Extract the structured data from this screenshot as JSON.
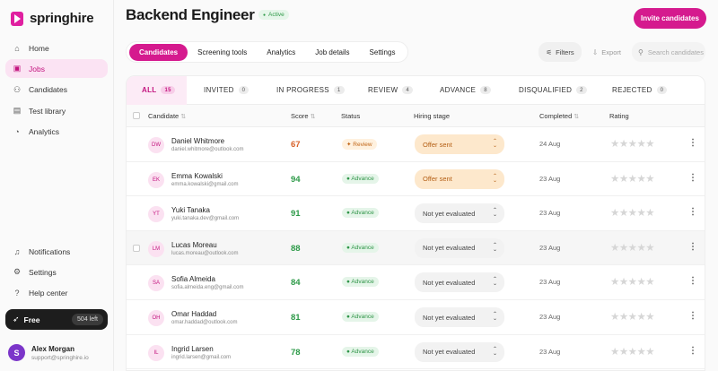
{
  "brand": {
    "name": "springhire",
    "color": "#d51a8e"
  },
  "sidebar": {
    "top_items": [
      {
        "label": "Home",
        "icon": "home-icon",
        "active": false
      },
      {
        "label": "Jobs",
        "icon": "briefcase-icon",
        "active": true
      },
      {
        "label": "Candidates",
        "icon": "users-icon",
        "active": false
      },
      {
        "label": "Test library",
        "icon": "book-icon",
        "active": false
      },
      {
        "label": "Analytics",
        "icon": "chart-icon",
        "active": false
      }
    ],
    "bottom_items": [
      {
        "label": "Notifications",
        "icon": "bell-icon"
      },
      {
        "label": "Settings",
        "icon": "gear-icon"
      },
      {
        "label": "Help center",
        "icon": "help-icon"
      }
    ],
    "plan": {
      "name": "Free",
      "remaining": "504 left"
    },
    "user": {
      "initial": "S",
      "name": "Alex Morgan",
      "email": "support@springhire.io"
    }
  },
  "header": {
    "title": "Backend Engineer",
    "status": "Active",
    "invite_label": "Invite candidates"
  },
  "tabs": [
    "Candidates",
    "Screening tools",
    "Analytics",
    "Job details",
    "Settings"
  ],
  "active_tab": "Candidates",
  "toolbar": {
    "filters_label": "Filters",
    "export_label": "Export",
    "search_placeholder": "Search candidates"
  },
  "stage_tabs": [
    {
      "label": "ALL",
      "count": "15",
      "active": true
    },
    {
      "label": "INVITED",
      "count": "0"
    },
    {
      "label": "IN PROGRESS",
      "count": "1"
    },
    {
      "label": "REVIEW",
      "count": "4"
    },
    {
      "label": "ADVANCE",
      "count": "8"
    },
    {
      "label": "DISQUALIFIED",
      "count": "2"
    },
    {
      "label": "REJECTED",
      "count": "0"
    }
  ],
  "table": {
    "columns": {
      "candidate": "Candidate",
      "score": "Score",
      "status": "Status",
      "stage": "Hiring stage",
      "completed": "Completed",
      "rating": "Rating"
    },
    "rows": [
      {
        "initials": "DW",
        "name": "Daniel Whitmore",
        "email": "daniel.whitmore@outlook.com",
        "score": "67",
        "score_color": "#d8622a",
        "status": "Review",
        "status_type": "review",
        "stage": "Offer sent",
        "stage_type": "offer",
        "completed": "24 Aug",
        "rating": 0
      },
      {
        "initials": "EK",
        "name": "Emma Kowalski",
        "email": "emma.kowalski@gmail.com",
        "score": "94",
        "score_color": "#2d9a48",
        "status": "Advance",
        "status_type": "advance",
        "stage": "Offer sent",
        "stage_type": "offer",
        "completed": "23 Aug",
        "rating": 0
      },
      {
        "initials": "YT",
        "name": "Yuki Tanaka",
        "email": "yuki.tanaka.dev@gmail.com",
        "score": "91",
        "score_color": "#2d9a48",
        "status": "Advance",
        "status_type": "advance",
        "stage": "Not yet evaluated",
        "stage_type": "none",
        "completed": "23 Aug",
        "rating": 0
      },
      {
        "initials": "LM",
        "name": "Lucas Moreau",
        "email": "lucas.moreau@outlook.com",
        "score": "88",
        "score_color": "#2d9a48",
        "status": "Advance",
        "status_type": "advance",
        "stage": "Not yet evaluated",
        "stage_type": "none",
        "completed": "23 Aug",
        "rating": 0
      },
      {
        "initials": "SA",
        "name": "Sofia Almeida",
        "email": "sofia.almeida.eng@gmail.com",
        "score": "84",
        "score_color": "#2d9a48",
        "status": "Advance",
        "status_type": "advance",
        "stage": "Not yet evaluated",
        "stage_type": "none",
        "completed": "23 Aug",
        "rating": 0
      },
      {
        "initials": "OH",
        "name": "Omar Haddad",
        "email": "omar.haddad@outlook.com",
        "score": "81",
        "score_color": "#2d9a48",
        "status": "Advance",
        "status_type": "advance",
        "stage": "Not yet evaluated",
        "stage_type": "none",
        "completed": "23 Aug",
        "rating": 0
      },
      {
        "initials": "IL",
        "name": "Ingrid Larsen",
        "email": "ingrid.larsen@gmail.com",
        "score": "78",
        "score_color": "#2d9a48",
        "status": "Advance",
        "status_type": "advance",
        "stage": "Not yet evaluated",
        "stage_type": "none",
        "completed": "23 Aug",
        "rating": 0
      }
    ]
  }
}
